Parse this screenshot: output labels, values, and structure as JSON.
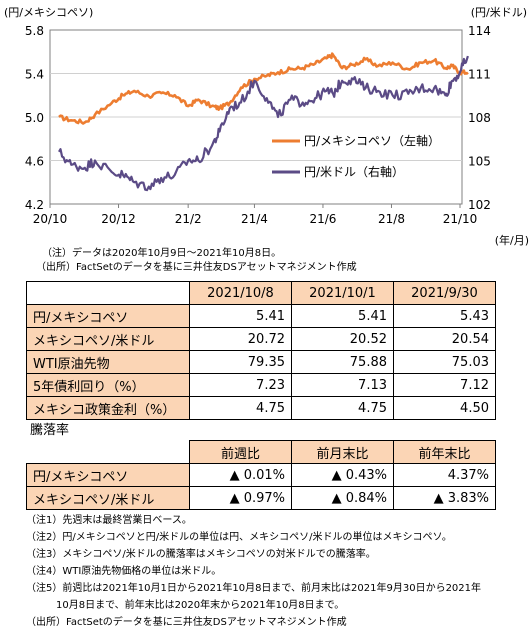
{
  "chart_data": {
    "type": "line",
    "left_axis_title": "(円/メキシコペソ)",
    "right_axis_title": "(円/米ドル)",
    "x_unit": "(年/月)",
    "x_ticks": [
      "20/10",
      "20/12",
      "21/2",
      "21/4",
      "21/6",
      "21/8",
      "21/10"
    ],
    "y_left_ticks": [
      "5.8",
      "5.4",
      "5.0",
      "4.6",
      "4.2"
    ],
    "y_right_ticks": [
      "114",
      "111",
      "108",
      "105",
      "102"
    ],
    "y_left_range": [
      4.2,
      5.8
    ],
    "y_right_range": [
      102,
      114
    ],
    "x_range": [
      "2020-10-09",
      "2021-10-08"
    ],
    "series": [
      {
        "name": "円/メキシコペソ（左軸）",
        "axis": "left",
        "color": "#ED7D31",
        "points": [
          [
            "2020-10-09",
            5.0
          ],
          [
            "2020-10-20",
            4.97
          ],
          [
            "2020-11-01",
            4.95
          ],
          [
            "2020-11-10",
            5.02
          ],
          [
            "2020-11-25",
            5.13
          ],
          [
            "2020-12-05",
            5.2
          ],
          [
            "2020-12-15",
            5.24
          ],
          [
            "2020-12-28",
            5.19
          ],
          [
            "2021-01-08",
            5.22
          ],
          [
            "2021-01-20",
            5.2
          ],
          [
            "2021-02-01",
            5.1
          ],
          [
            "2021-02-10",
            5.16
          ],
          [
            "2021-02-22",
            5.1
          ],
          [
            "2021-03-01",
            5.08
          ],
          [
            "2021-03-10",
            5.13
          ],
          [
            "2021-03-20",
            5.27
          ],
          [
            "2021-04-01",
            5.35
          ],
          [
            "2021-04-12",
            5.38
          ],
          [
            "2021-04-22",
            5.41
          ],
          [
            "2021-05-03",
            5.44
          ],
          [
            "2021-05-14",
            5.45
          ],
          [
            "2021-05-25",
            5.49
          ],
          [
            "2021-06-04",
            5.54
          ],
          [
            "2021-06-10",
            5.57
          ],
          [
            "2021-06-18",
            5.45
          ],
          [
            "2021-06-28",
            5.48
          ],
          [
            "2021-07-09",
            5.53
          ],
          [
            "2021-07-20",
            5.47
          ],
          [
            "2021-08-02",
            5.5
          ],
          [
            "2021-08-16",
            5.44
          ],
          [
            "2021-08-27",
            5.5
          ],
          [
            "2021-09-08",
            5.52
          ],
          [
            "2021-09-18",
            5.45
          ],
          [
            "2021-09-24",
            5.47
          ],
          [
            "2021-10-01",
            5.41
          ],
          [
            "2021-10-08",
            5.41
          ]
        ]
      },
      {
        "name": "円/米ドル（右軸）",
        "axis": "right",
        "color": "#5B4B86",
        "points": [
          [
            "2020-10-09",
            105.6
          ],
          [
            "2020-10-20",
            104.7
          ],
          [
            "2020-11-01",
            104.5
          ],
          [
            "2020-11-10",
            105.0
          ],
          [
            "2020-11-25",
            104.2
          ],
          [
            "2020-12-05",
            104.0
          ],
          [
            "2020-12-15",
            103.5
          ],
          [
            "2020-12-28",
            103.2
          ],
          [
            "2021-01-08",
            103.8
          ],
          [
            "2021-01-20",
            104.0
          ],
          [
            "2021-02-01",
            105.0
          ],
          [
            "2021-02-10",
            105.0
          ],
          [
            "2021-02-22",
            106.0
          ],
          [
            "2021-03-01",
            107.0
          ],
          [
            "2021-03-10",
            108.6
          ],
          [
            "2021-03-20",
            109.0
          ],
          [
            "2021-04-01",
            110.5
          ],
          [
            "2021-04-12",
            109.3
          ],
          [
            "2021-04-22",
            108.0
          ],
          [
            "2021-05-03",
            109.2
          ],
          [
            "2021-05-14",
            109.0
          ],
          [
            "2021-05-25",
            109.3
          ],
          [
            "2021-06-04",
            109.8
          ],
          [
            "2021-06-10",
            109.6
          ],
          [
            "2021-06-18",
            110.5
          ],
          [
            "2021-06-28",
            110.6
          ],
          [
            "2021-07-09",
            110.0
          ],
          [
            "2021-07-20",
            109.8
          ],
          [
            "2021-08-02",
            109.5
          ],
          [
            "2021-08-16",
            109.6
          ],
          [
            "2021-08-27",
            110.0
          ],
          [
            "2021-09-08",
            110.0
          ],
          [
            "2021-09-18",
            109.5
          ],
          [
            "2021-09-24",
            110.5
          ],
          [
            "2021-10-01",
            111.1
          ],
          [
            "2021-10-08",
            112.2
          ]
        ]
      }
    ]
  },
  "chart_notes": [
    "（注）データは2020年10月9日～2021年10月8日。",
    "（出所）FactSetのデータを基に三井住友DSアセットマネジメント作成"
  ],
  "table1": {
    "headers": [
      "2021/10/8",
      "2021/10/1",
      "2021/9/30"
    ],
    "rows": [
      {
        "label": "円/メキシコペソ",
        "values": [
          "5.41",
          "5.41",
          "5.43"
        ]
      },
      {
        "label": "メキシコペソ/米ドル",
        "values": [
          "20.72",
          "20.52",
          "20.54"
        ]
      },
      {
        "label": "WTI原油先物",
        "values": [
          "79.35",
          "75.88",
          "75.03"
        ]
      },
      {
        "label": "5年債利回り（%）",
        "values": [
          "7.23",
          "7.13",
          "7.12"
        ]
      },
      {
        "label": "メキシコ政策金利（%）",
        "values": [
          "4.75",
          "4.75",
          "4.50"
        ]
      }
    ]
  },
  "table2": {
    "title": "騰落率",
    "headers": [
      "前週比",
      "前月末比",
      "前年末比"
    ],
    "rows": [
      {
        "label": "円/メキシコペソ",
        "values": [
          "▲ 0.01%",
          "▲ 0.43%",
          "4.37%"
        ]
      },
      {
        "label": "メキシコペソ/米ドル",
        "values": [
          "▲ 0.97%",
          "▲ 0.84%",
          "▲ 3.83%"
        ]
      }
    ]
  },
  "footnotes": [
    "（注1）先週末は最終営業日ベース。",
    "（注2）円/メキシコペソと円/米ドルの単位は円、メキシコペソ/米ドルの単位はメキシコペソ。",
    "（注3）メキシコペソ/米ドルの騰落率はメキシコペソの対米ドルでの騰落率。",
    "（注4）WTI原油先物価格の単位は米ドル。",
    "（注5）前週比は2021年10月1日から2021年10月8日まで、前月末比は2021年9月30日から2021年",
    "　　　10月8日まで、前年末比は2020年末から2021年10月8日まで。",
    "（出所）FactSetのデータを基に三井住友DSアセットマネジメント作成"
  ]
}
